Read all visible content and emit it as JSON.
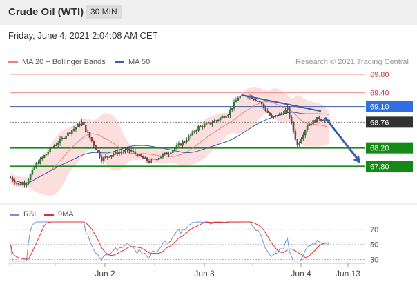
{
  "header": {
    "title": "Crude Oil (WTI)",
    "interval": "30 MIN"
  },
  "timestamp": "Friday, June 4, 2021 2:04:08 AM CET",
  "credit": "Research © 2021 Trading Central",
  "colors": {
    "ma20": "#f08080",
    "ma50": "#3a5ea8",
    "band": "#fbd3d3",
    "resistance": "#f28b8b",
    "support": "#1a8a1a",
    "arrow": "#2f63a8",
    "rsi": "#6f8fd8",
    "rsi_ma": "#e03030",
    "up": "#1d8f2a",
    "down": "#c62828"
  },
  "chart_data": [
    {
      "type": "line",
      "title": "",
      "legend": [
        {
          "name": "MA 20 + Bollinger Bands",
          "color": "#f08080"
        },
        {
          "name": "MA 50",
          "color": "#3a5ea8"
        }
      ],
      "x_ticks": [
        "Jun 2",
        "Jun 3",
        "Jun 4",
        "Jun 13"
      ],
      "y_range": [
        67.52,
        69.92
      ],
      "price_levels": [
        {
          "value": 69.8,
          "label": "69.80",
          "kind": "resistance"
        },
        {
          "value": 69.4,
          "label": "69.40",
          "kind": "resistance"
        },
        {
          "value": 69.1,
          "label": "69.10",
          "kind": "ma50"
        },
        {
          "value": 68.76,
          "label": "68.76",
          "kind": "last"
        },
        {
          "value": 68.2,
          "label": "68.20",
          "kind": "support"
        },
        {
          "value": 67.8,
          "label": "67.80",
          "kind": "support"
        }
      ],
      "trendline": [
        [
          117,
          69.35
        ],
        [
          157,
          69.0
        ]
      ],
      "arrow": [
        [
          159,
          68.86
        ],
        [
          177,
          67.86
        ]
      ],
      "candles": {
        "start_close": 67.55,
        "waypoints": [
          [
            0,
            67.55
          ],
          [
            4,
            67.4
          ],
          [
            8,
            67.45
          ],
          [
            13,
            67.85
          ],
          [
            22,
            68.25
          ],
          [
            30,
            68.55
          ],
          [
            36,
            68.75
          ],
          [
            46,
            67.95
          ],
          [
            52,
            68.08
          ],
          [
            60,
            68.15
          ],
          [
            70,
            67.9
          ],
          [
            80,
            68.1
          ],
          [
            88,
            68.35
          ],
          [
            95,
            68.65
          ],
          [
            102,
            68.75
          ],
          [
            110,
            68.95
          ],
          [
            115,
            69.3
          ],
          [
            120,
            69.35
          ],
          [
            126,
            69.2
          ],
          [
            132,
            68.85
          ],
          [
            137,
            68.95
          ],
          [
            140,
            69.05
          ],
          [
            145,
            68.25
          ],
          [
            150,
            68.7
          ],
          [
            156,
            68.85
          ],
          [
            161,
            68.76
          ]
        ]
      },
      "rsi": {
        "name": "RSI",
        "ma_name": "9MA",
        "y_ticks": [
          70,
          50,
          30
        ],
        "y_range": [
          25,
          80
        ]
      }
    }
  ]
}
